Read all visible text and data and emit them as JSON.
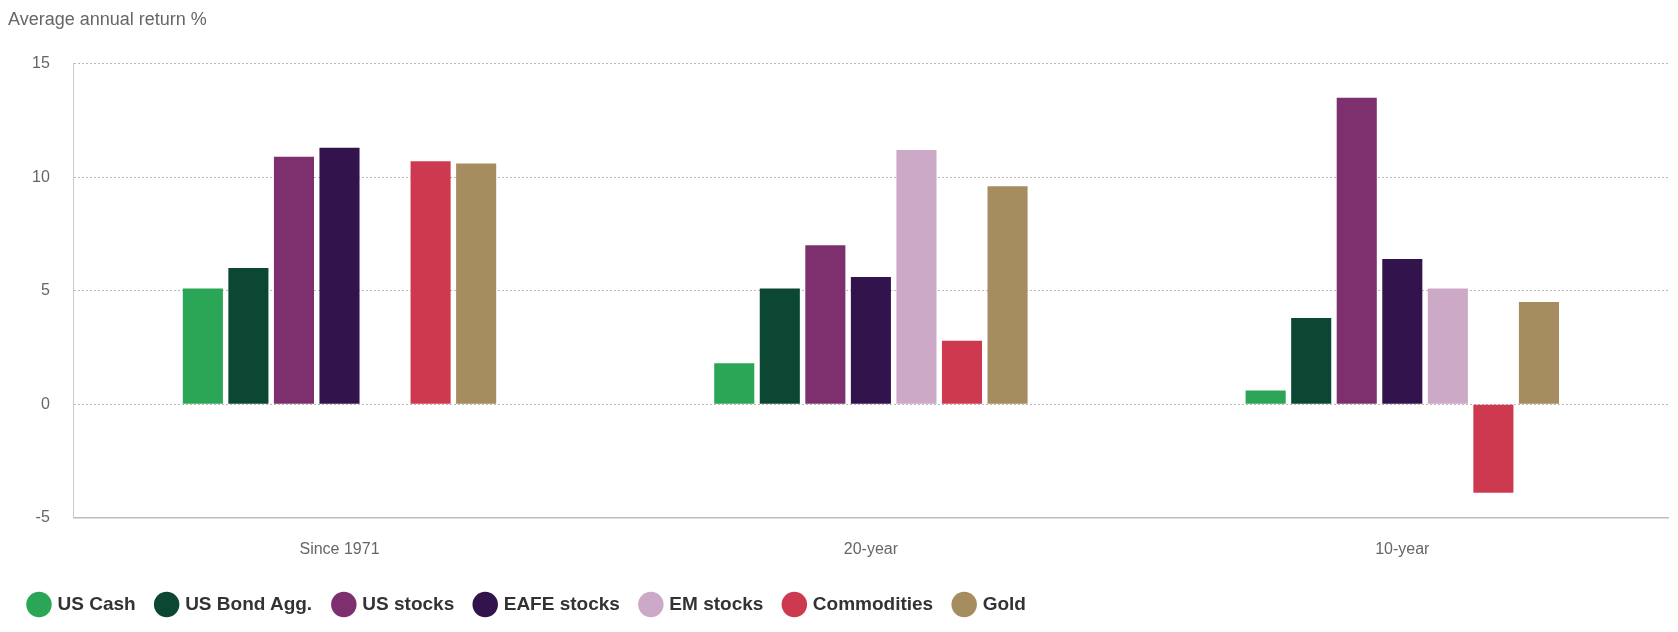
{
  "chart_data": {
    "type": "bar",
    "ylabel": "Average annual return %",
    "categories": [
      "Since 1971",
      "20-year",
      "10-year"
    ],
    "series": [
      {
        "name": "US Cash",
        "color": "#2ba657",
        "values": [
          5.1,
          1.8,
          0.6
        ]
      },
      {
        "name": "US Bond Agg.",
        "color": "#0b4733",
        "values": [
          6.0,
          5.1,
          3.8
        ]
      },
      {
        "name": "US stocks",
        "color": "#7d2f6e",
        "values": [
          10.9,
          7.0,
          13.5
        ]
      },
      {
        "name": "EAFE stocks",
        "color": "#33134b",
        "values": [
          11.3,
          5.6,
          6.4
        ]
      },
      {
        "name": "EM stocks",
        "color": "#cca9c7",
        "values": [
          null,
          11.2,
          5.1
        ]
      },
      {
        "name": "Commodities",
        "color": "#cd3a50",
        "values": [
          10.7,
          2.8,
          -3.9
        ]
      },
      {
        "name": "Gold",
        "color": "#a58d5f",
        "values": [
          10.6,
          9.6,
          4.5
        ]
      }
    ],
    "ylim": [
      -5,
      15
    ],
    "yticks": [
      -5,
      0,
      5,
      10,
      15
    ],
    "grid": "y",
    "legend": "bottom"
  }
}
